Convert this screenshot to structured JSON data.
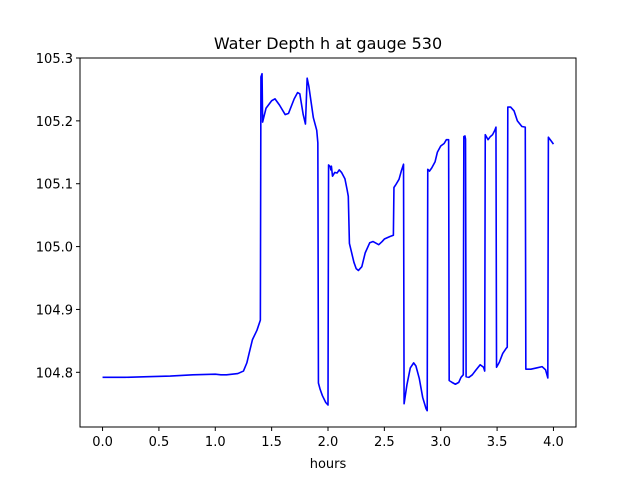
{
  "chart_data": {
    "type": "line",
    "title": "Water Depth h at gauge 530",
    "xlabel": "hours",
    "ylabel": "",
    "xlim": [
      -0.2,
      4.2
    ],
    "ylim": [
      104.713,
      105.3
    ],
    "xticks": [
      {
        "value": 0.0,
        "label": "0.0"
      },
      {
        "value": 0.5,
        "label": "0.5"
      },
      {
        "value": 1.0,
        "label": "1.0"
      },
      {
        "value": 1.5,
        "label": "1.5"
      },
      {
        "value": 2.0,
        "label": "2.0"
      },
      {
        "value": 2.5,
        "label": "2.5"
      },
      {
        "value": 3.0,
        "label": "3.0"
      },
      {
        "value": 3.5,
        "label": "3.5"
      },
      {
        "value": 4.0,
        "label": "4.0"
      }
    ],
    "yticks": [
      {
        "value": 104.8,
        "label": "104.8"
      },
      {
        "value": 104.9,
        "label": "104.9"
      },
      {
        "value": 105.0,
        "label": "105.0"
      },
      {
        "value": 105.1,
        "label": "105.1"
      },
      {
        "value": 105.2,
        "label": "105.2"
      },
      {
        "value": 105.3,
        "label": "105.3"
      }
    ],
    "grid": false,
    "legend": "none",
    "line_color": "#0000ff",
    "series": [
      {
        "points": [
          [
            0.0,
            104.792
          ],
          [
            0.2,
            104.792
          ],
          [
            0.4,
            104.793
          ],
          [
            0.6,
            104.794
          ],
          [
            0.8,
            104.796
          ],
          [
            1.0,
            104.797
          ],
          [
            1.05,
            104.796
          ],
          [
            1.1,
            104.796
          ],
          [
            1.15,
            104.797
          ],
          [
            1.2,
            104.798
          ],
          [
            1.25,
            104.802
          ],
          [
            1.28,
            104.815
          ],
          [
            1.3,
            104.83
          ],
          [
            1.33,
            104.852
          ],
          [
            1.37,
            104.867
          ],
          [
            1.4,
            104.883
          ],
          [
            1.405,
            105.27
          ],
          [
            1.415,
            105.275
          ],
          [
            1.42,
            105.198
          ],
          [
            1.45,
            105.22
          ],
          [
            1.5,
            105.232
          ],
          [
            1.53,
            105.235
          ],
          [
            1.57,
            105.225
          ],
          [
            1.62,
            105.21
          ],
          [
            1.65,
            105.212
          ],
          [
            1.7,
            105.235
          ],
          [
            1.73,
            105.245
          ],
          [
            1.75,
            105.243
          ],
          [
            1.78,
            105.21
          ],
          [
            1.8,
            105.195
          ],
          [
            1.815,
            105.268
          ],
          [
            1.83,
            105.255
          ],
          [
            1.87,
            105.205
          ],
          [
            1.9,
            105.185
          ],
          [
            1.91,
            105.165
          ],
          [
            1.915,
            104.783
          ],
          [
            1.93,
            104.773
          ],
          [
            1.95,
            104.763
          ],
          [
            1.98,
            104.752
          ],
          [
            2.0,
            104.748
          ],
          [
            2.005,
            105.13
          ],
          [
            2.02,
            105.127
          ],
          [
            2.025,
            105.122
          ],
          [
            2.03,
            105.128
          ],
          [
            2.04,
            105.112
          ],
          [
            2.06,
            105.118
          ],
          [
            2.08,
            105.117
          ],
          [
            2.1,
            105.122
          ],
          [
            2.12,
            105.118
          ],
          [
            2.15,
            105.108
          ],
          [
            2.17,
            105.09
          ],
          [
            2.18,
            105.08
          ],
          [
            2.19,
            105.005
          ],
          [
            2.21,
            104.99
          ],
          [
            2.23,
            104.975
          ],
          [
            2.25,
            104.965
          ],
          [
            2.27,
            104.962
          ],
          [
            2.3,
            104.968
          ],
          [
            2.33,
            104.99
          ],
          [
            2.37,
            105.006
          ],
          [
            2.4,
            105.008
          ],
          [
            2.43,
            105.005
          ],
          [
            2.45,
            105.003
          ],
          [
            2.48,
            105.008
          ],
          [
            2.5,
            105.012
          ],
          [
            2.55,
            105.016
          ],
          [
            2.58,
            105.018
          ],
          [
            2.585,
            105.094
          ],
          [
            2.6,
            105.098
          ],
          [
            2.63,
            105.107
          ],
          [
            2.65,
            105.12
          ],
          [
            2.67,
            105.131
          ],
          [
            2.675,
            104.75
          ],
          [
            2.7,
            104.78
          ],
          [
            2.73,
            104.807
          ],
          [
            2.76,
            104.815
          ],
          [
            2.78,
            104.81
          ],
          [
            2.81,
            104.79
          ],
          [
            2.84,
            104.76
          ],
          [
            2.87,
            104.742
          ],
          [
            2.88,
            104.739
          ],
          [
            2.885,
            105.123
          ],
          [
            2.9,
            105.12
          ],
          [
            2.92,
            105.125
          ],
          [
            2.95,
            105.135
          ],
          [
            2.97,
            105.15
          ],
          [
            3.0,
            105.16
          ],
          [
            3.03,
            105.164
          ],
          [
            3.05,
            105.17
          ],
          [
            3.07,
            105.17
          ],
          [
            3.075,
            104.787
          ],
          [
            3.1,
            104.784
          ],
          [
            3.13,
            104.781
          ],
          [
            3.16,
            104.784
          ],
          [
            3.18,
            104.792
          ],
          [
            3.2,
            104.796
          ],
          [
            3.205,
            105.175
          ],
          [
            3.215,
            105.176
          ],
          [
            3.22,
            105.171
          ],
          [
            3.225,
            104.793
          ],
          [
            3.25,
            104.792
          ],
          [
            3.28,
            104.796
          ],
          [
            3.31,
            104.803
          ],
          [
            3.35,
            104.812
          ],
          [
            3.38,
            104.808
          ],
          [
            3.39,
            104.802
          ],
          [
            3.395,
            105.178
          ],
          [
            3.42,
            105.17
          ],
          [
            3.44,
            105.175
          ],
          [
            3.46,
            105.178
          ],
          [
            3.48,
            105.185
          ],
          [
            3.49,
            105.19
          ],
          [
            3.495,
            104.808
          ],
          [
            3.52,
            104.816
          ],
          [
            3.55,
            104.83
          ],
          [
            3.58,
            104.838
          ],
          [
            3.59,
            104.84
          ],
          [
            3.595,
            105.222
          ],
          [
            3.62,
            105.222
          ],
          [
            3.65,
            105.216
          ],
          [
            3.68,
            105.2
          ],
          [
            3.72,
            105.191
          ],
          [
            3.75,
            105.19
          ],
          [
            3.755,
            104.805
          ],
          [
            3.8,
            104.805
          ],
          [
            3.85,
            104.807
          ],
          [
            3.9,
            104.809
          ],
          [
            3.93,
            104.804
          ],
          [
            3.95,
            104.791
          ],
          [
            3.955,
            105.174
          ],
          [
            3.98,
            105.168
          ],
          [
            4.0,
            105.163
          ]
        ]
      }
    ]
  }
}
